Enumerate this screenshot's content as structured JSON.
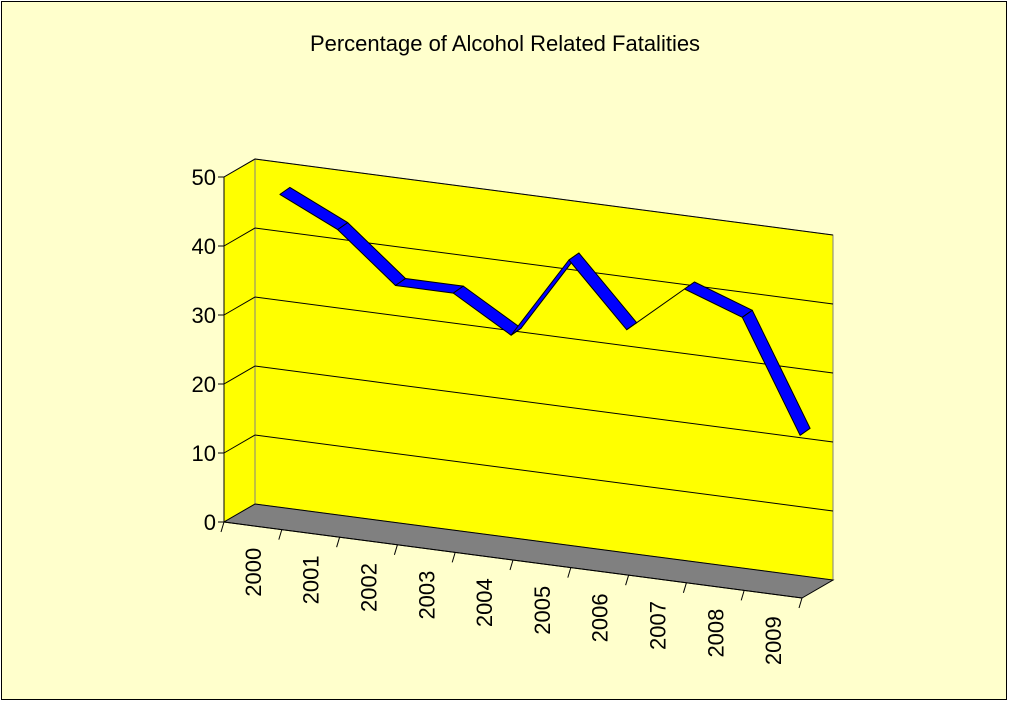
{
  "chart_data": {
    "type": "line",
    "title": "Percentage of Alcohol Related Fatalities",
    "xlabel": "",
    "ylabel": "",
    "categories": [
      "2000",
      "2001",
      "2002",
      "2003",
      "2004",
      "2005",
      "2006",
      "2007",
      "2008",
      "2009"
    ],
    "series": [
      {
        "values": [
          46,
          42,
          35,
          35,
          30,
          42,
          33,
          40,
          37,
          21
        ]
      }
    ],
    "ylim": [
      0,
      50
    ],
    "yticks": [
      0,
      10,
      20,
      30,
      40,
      50
    ],
    "grid": true,
    "legend": "none",
    "three_d": true,
    "colors": {
      "background": "#ffffcc",
      "wall": "#ffff00",
      "floor": "#808080",
      "line": "#0000ff",
      "axis": "#000000"
    }
  }
}
